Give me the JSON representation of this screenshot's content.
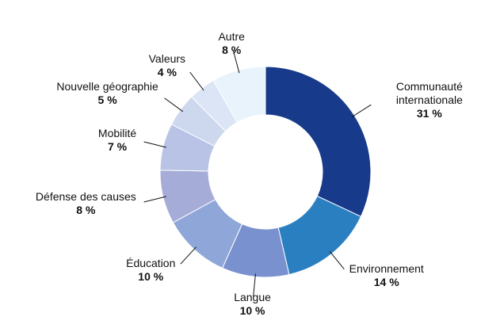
{
  "chart_data": {
    "type": "donut",
    "categories": [
      "Communauté internationale",
      "Environnement",
      "Langue",
      "Éducation",
      "Défense des causes",
      "Mobilité",
      "Nouvelle géographie",
      "Valeurs",
      "Autre"
    ],
    "values": [
      31,
      14,
      10,
      10,
      8,
      7,
      5,
      4,
      8
    ],
    "value_labels": [
      "31 %",
      "14 %",
      "10 %",
      "10 %",
      "8 %",
      "7 %",
      "5 %",
      "4 %",
      "8 %"
    ],
    "colors": [
      "#173a8a",
      "#2a7fc1",
      "#7a91cf",
      "#8ea6d8",
      "#a5acd8",
      "#b9c3e6",
      "#cdd7ee",
      "#dce5f5",
      "#e8f3fc"
    ]
  }
}
